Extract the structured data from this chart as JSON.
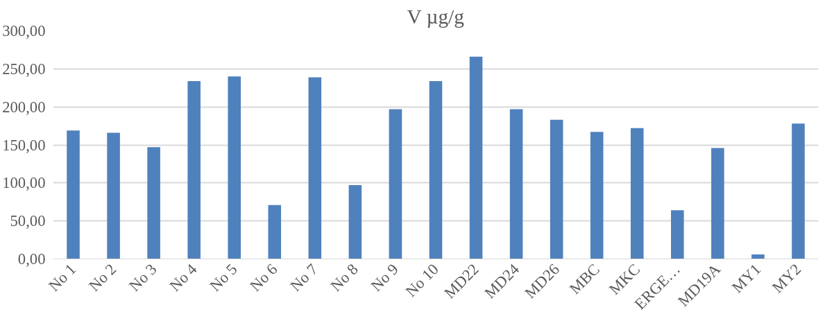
{
  "chart_data": {
    "type": "bar",
    "title": "V µg/g",
    "categories": [
      "No 1",
      "No 2",
      "No 3",
      "No 4",
      "No 5",
      "No 6",
      "No 7",
      "No 8",
      "No 9",
      "No 10",
      "MD22",
      "MD24",
      "MD26",
      "MBC",
      "MKC",
      "ERGE…",
      "MD19A",
      "MY1",
      "MY2"
    ],
    "values": [
      169,
      166,
      147,
      234,
      240,
      71,
      239,
      97,
      197,
      234,
      266,
      197,
      183,
      167,
      172,
      64,
      146,
      6,
      178
    ],
    "color": "#4f81bd",
    "ylim": [
      0,
      300
    ],
    "yticks": [
      {
        "value": 0,
        "label": "0,00"
      },
      {
        "value": 50,
        "label": "50,00"
      },
      {
        "value": 100,
        "label": "100,00"
      },
      {
        "value": 150,
        "label": "150,00"
      },
      {
        "value": 200,
        "label": "200,00"
      },
      {
        "value": 250,
        "label": "250,00"
      },
      {
        "value": 300,
        "label": "300,00"
      }
    ],
    "grid": "y"
  }
}
